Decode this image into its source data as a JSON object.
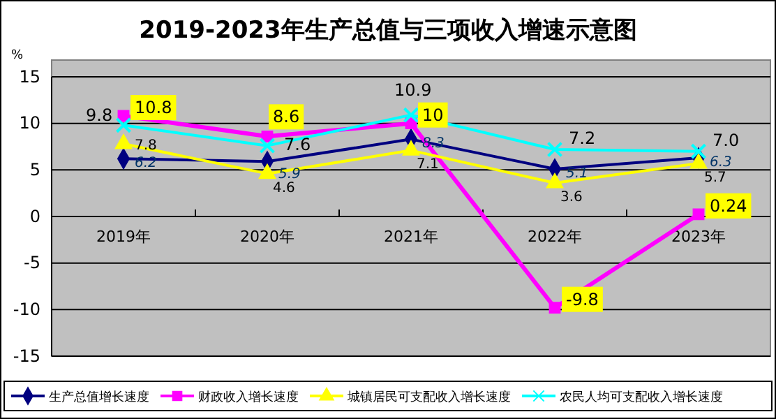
{
  "chart_data": {
    "type": "line",
    "title": "2019-2023年生产总值与三项收入增速示意图",
    "ylabel": "%",
    "categories": [
      "2019年",
      "2020年",
      "2021年",
      "2022年",
      "2023年"
    ],
    "ylim": [
      -15,
      15
    ],
    "yticks": [
      -15,
      -10,
      -5,
      0,
      5,
      10,
      15
    ],
    "grid": "y",
    "legend": "bottom",
    "series": [
      {
        "name": "生产总值增长速度",
        "color": "#000080",
        "marker": "diamond",
        "values": [
          6.2,
          5.9,
          8.3,
          5.1,
          6.3
        ],
        "value_labels": [
          "6.2",
          "5.9",
          "8.3",
          "5.1",
          "6.3"
        ]
      },
      {
        "name": "财政收入增长速度",
        "color": "#ff00ff",
        "marker": "square",
        "values": [
          10.8,
          8.6,
          10,
          -9.8,
          0.24
        ],
        "value_labels": [
          "10.8",
          "8.6",
          "10",
          "-9.8",
          "0.24"
        ]
      },
      {
        "name": "城镇居民可支配收入增长速度",
        "color": "#ffff00",
        "marker": "triangle",
        "values": [
          7.8,
          4.6,
          7.1,
          3.6,
          5.7
        ],
        "value_labels": [
          "7.8",
          "4.6",
          "7.1",
          "3.6",
          "5.7"
        ]
      },
      {
        "name": "农民人均可支配收入增长速度",
        "color": "#00ffff",
        "marker": "cross",
        "values": [
          9.8,
          7.6,
          10.9,
          7.2,
          7.0
        ],
        "value_labels": [
          "9.8",
          "7.6",
          "10.9",
          "7.2",
          "7.0"
        ]
      }
    ]
  }
}
